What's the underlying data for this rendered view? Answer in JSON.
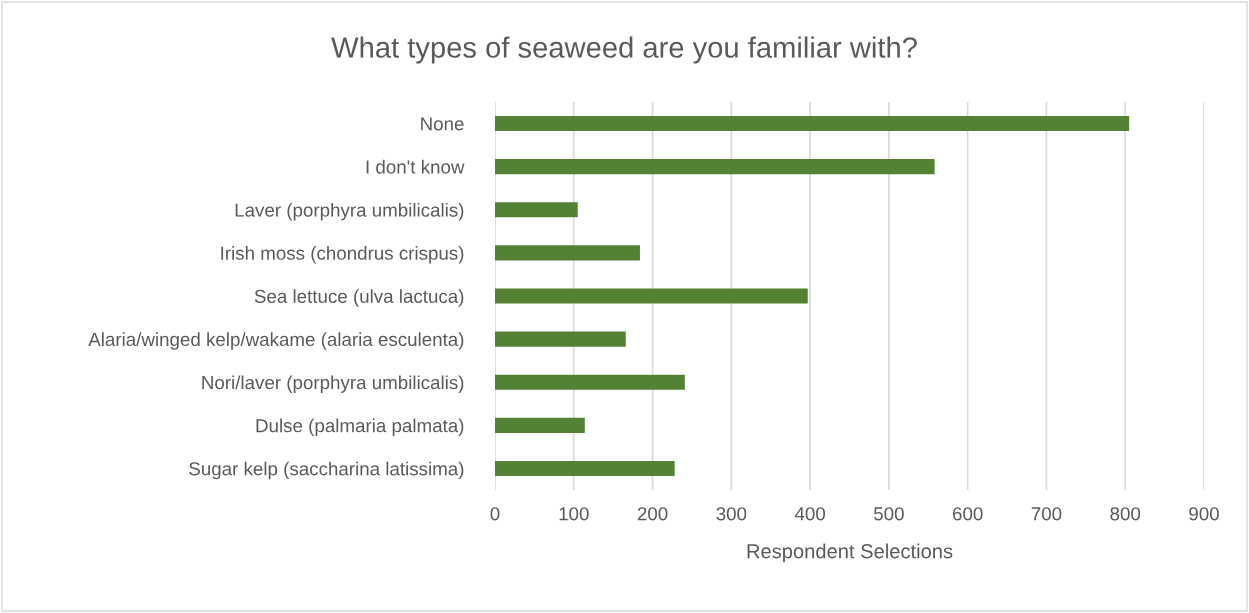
{
  "chart_data": {
    "type": "bar",
    "orientation": "horizontal",
    "title": "What types of seaweed are you familiar with?",
    "xlabel": "Respondent Selections",
    "categories": [
      "None",
      "I don't know",
      "Laver (porphyra umbilicalis)",
      "Irish moss (chondrus crispus)",
      "Sea lettuce (ulva lactuca)",
      "Alaria/winged kelp/wakame (alaria esculenta)",
      "Nori/laver (porphyra umbilicalis)",
      "Dulse (palmaria palmata)",
      "Sugar kelp (saccharina latissima)"
    ],
    "values": [
      805,
      558,
      105,
      184,
      397,
      166,
      241,
      114,
      228
    ],
    "color": "#548235",
    "xlim": [
      0,
      900
    ],
    "xticks": [
      0,
      100,
      200,
      300,
      400,
      500,
      600,
      700,
      800,
      900
    ],
    "grid": "x",
    "legend": false
  }
}
